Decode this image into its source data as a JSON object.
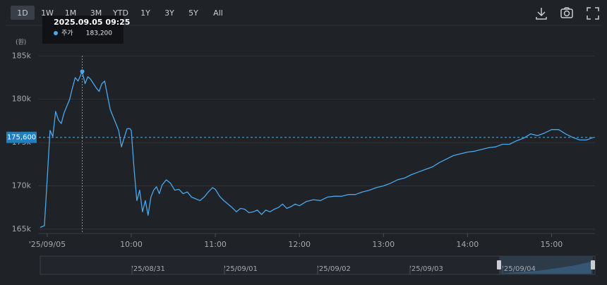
{
  "toolbar": {
    "ranges": [
      "1D",
      "1W",
      "1M",
      "3M",
      "YTD",
      "1Y",
      "3Y",
      "5Y",
      "All"
    ],
    "selected": "1D"
  },
  "chart_data": {
    "type": "line",
    "y_unit": "(원)",
    "x": [
      "08:55",
      "08:58",
      "09:00",
      "09:02",
      "09:04",
      "09:06",
      "09:08",
      "09:10",
      "09:12",
      "09:14",
      "09:16",
      "09:18",
      "09:20",
      "09:22",
      "09:25",
      "09:27",
      "09:29",
      "09:31",
      "09:33",
      "09:35",
      "09:37",
      "09:39",
      "09:41",
      "09:43",
      "09:45",
      "09:47",
      "09:49",
      "09:51",
      "09:53",
      "09:55",
      "09:57",
      "09:59",
      "10:00",
      "10:02",
      "10:04",
      "10:06",
      "10:08",
      "10:10",
      "10:12",
      "10:14",
      "10:16",
      "10:18",
      "10:20",
      "10:22",
      "10:25",
      "10:28",
      "10:31",
      "10:34",
      "10:37",
      "10:40",
      "10:43",
      "10:46",
      "10:49",
      "10:52",
      "10:55",
      "10:58",
      "11:00",
      "11:03",
      "11:06",
      "11:09",
      "11:12",
      "11:15",
      "11:18",
      "11:21",
      "11:24",
      "11:27",
      "11:30",
      "11:33",
      "11:36",
      "11:39",
      "11:42",
      "11:45",
      "11:48",
      "11:51",
      "11:54",
      "11:57",
      "12:00",
      "12:05",
      "12:10",
      "12:15",
      "12:20",
      "12:25",
      "12:30",
      "12:35",
      "12:40",
      "12:45",
      "12:50",
      "12:55",
      "13:00",
      "13:05",
      "13:10",
      "13:15",
      "13:20",
      "13:25",
      "13:30",
      "13:35",
      "13:40",
      "13:45",
      "13:50",
      "13:55",
      "14:00",
      "14:05",
      "14:10",
      "14:15",
      "14:20",
      "14:25",
      "14:30",
      "14:35",
      "14:40",
      "14:45",
      "14:50",
      "14:55",
      "15:00",
      "15:05",
      "15:10",
      "15:15",
      "15:20",
      "15:25",
      "15:30"
    ],
    "series": [
      {
        "name": "주가",
        "color": "#4aa8ec",
        "values": [
          165200,
          165400,
          170800,
          176400,
          175700,
          178600,
          177600,
          177200,
          178400,
          179200,
          180000,
          181300,
          182500,
          182100,
          183200,
          181800,
          182600,
          182300,
          181800,
          181300,
          180900,
          181800,
          182100,
          180400,
          178800,
          178000,
          177200,
          176400,
          174500,
          175600,
          176600,
          176600,
          176400,
          171900,
          168300,
          169500,
          167000,
          168300,
          166600,
          168700,
          169500,
          169900,
          169100,
          170100,
          170700,
          170300,
          169500,
          169600,
          169100,
          169300,
          168700,
          168500,
          168300,
          168700,
          169300,
          169800,
          169600,
          168800,
          168300,
          167900,
          167500,
          167000,
          167400,
          167300,
          166900,
          167000,
          167200,
          166700,
          167200,
          167000,
          167300,
          167500,
          167900,
          167400,
          167600,
          167900,
          167700,
          168200,
          168400,
          168300,
          168700,
          168800,
          168800,
          169000,
          169000,
          169300,
          169500,
          169800,
          170000,
          170300,
          170700,
          170900,
          171300,
          171600,
          171900,
          172200,
          172700,
          173100,
          173500,
          173700,
          173900,
          174000,
          174200,
          174400,
          174500,
          174800,
          174800,
          175200,
          175500,
          176000,
          175800,
          176100,
          176500,
          176500,
          176000,
          175600,
          175300,
          175300,
          175600
        ]
      }
    ],
    "xlim": [
      "08:54",
      "15:31"
    ],
    "xticks": [
      {
        "value": "09:00",
        "label": "'25/09/05"
      },
      "10:00",
      "11:00",
      "12:00",
      "13:00",
      "14:00",
      "15:00"
    ],
    "ylim": [
      164500,
      186000
    ],
    "yticks": [
      {
        "value": 165000,
        "label": "165k"
      },
      {
        "value": 170000,
        "label": "170k"
      },
      {
        "value": 175000,
        "label": "175k"
      },
      {
        "value": 180000,
        "label": "180k"
      },
      {
        "value": 185000,
        "label": "185k"
      }
    ],
    "grid": true,
    "reference_line": {
      "value": 175600,
      "label": "175,600"
    },
    "tooltip": {
      "time": "2025.09.05 09:25",
      "x": "09:25",
      "value": 183200,
      "label": "183,200"
    },
    "navigator": {
      "labels": [
        "'25/08/31",
        "'25/09/01",
        "'25/09/02",
        "'25/09/03",
        "'25/09/04"
      ]
    }
  }
}
